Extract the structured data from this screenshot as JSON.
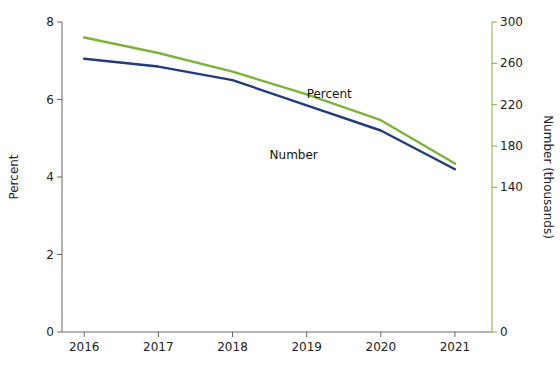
{
  "chart_data": {
    "type": "line",
    "x": [
      2016,
      2017,
      2018,
      2019,
      2020,
      2021
    ],
    "series": [
      {
        "color": "#1f3d7a",
        "values": [
          7.05,
          6.85,
          6.5,
          5.85,
          5.2,
          4.2
        ]
      },
      {
        "color": "#7db33a",
        "values": [
          285,
          270,
          252,
          230,
          205,
          163
        ],
        "axis": "y2"
      }
    ],
    "ylabel": "Percent",
    "y2label": "Number (thousands)",
    "xlim": [
      2015.7,
      2021.5
    ],
    "xticks": [
      2016,
      2017,
      2018,
      2019,
      2020,
      2021
    ],
    "ylim": [
      0,
      8
    ],
    "yticks": [
      0,
      2,
      4,
      6,
      8
    ],
    "y2lim": [
      0,
      300
    ],
    "y2ticks": [
      0,
      140,
      180,
      220,
      260,
      300
    ],
    "annotations": [
      {
        "text": "Percent",
        "x": 2019.0,
        "y": 5.95
      },
      {
        "text": "Number",
        "x": 2018.5,
        "y": 4.4
      }
    ]
  }
}
